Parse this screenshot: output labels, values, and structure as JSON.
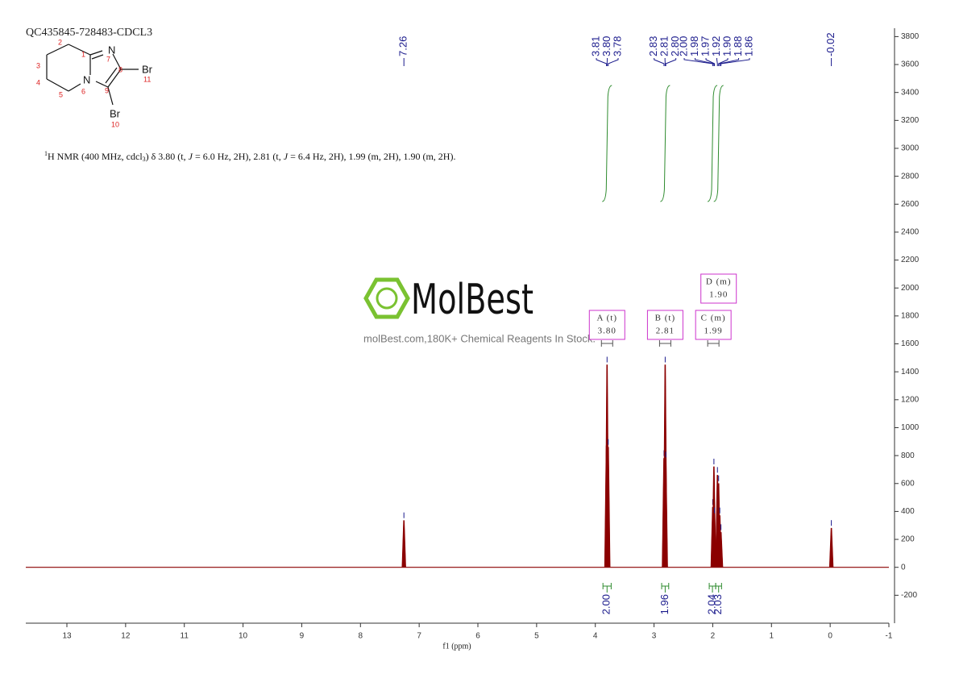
{
  "chart_data": {
    "type": "nmr",
    "title": "QC435845-728483-CDCL3",
    "description": [
      "1",
      "H NMR (400 MHz, cdcl",
      "3",
      ") δ 3.80 (t, ",
      "J",
      " = 6.0 Hz, 2H), 2.81 (t, ",
      "J",
      " = 6.4 Hz, 2H), 1.99 (m, 2H), 1.90 (m, 2H)."
    ],
    "structure": {
      "atoms": [
        "N",
        "N",
        "Br",
        "Br"
      ],
      "numbers": [
        "1",
        "2",
        "3",
        "4",
        "5",
        "6",
        "7",
        "8",
        "9",
        "10",
        "11"
      ]
    },
    "watermark": {
      "brand": "MolBest",
      "slogan": "molBest.com,180K+ Chemical Reagents In Stock."
    },
    "xlabel": "f1 (ppm)",
    "xlim": [
      13.7,
      -1
    ],
    "xticks": [
      13,
      12,
      11,
      10,
      9,
      8,
      7,
      6,
      5,
      4,
      3,
      2,
      1,
      0,
      -1
    ],
    "ylim": [
      -400,
      3860
    ],
    "yticks": [
      -200,
      0,
      200,
      400,
      600,
      800,
      1000,
      1200,
      1400,
      1600,
      1800,
      2000,
      2200,
      2400,
      2600,
      2800,
      3000,
      3200,
      3400,
      3600,
      3800
    ],
    "color": "#8b0000",
    "peak_color": "#1a1a8c",
    "x": [
      7.26,
      3.81,
      3.8,
      3.78,
      2.83,
      2.81,
      2.8,
      2.0,
      1.98,
      1.97,
      1.92,
      1.9,
      1.88,
      1.86,
      -0.02
    ],
    "x_labels": [
      "7.26",
      "3.81",
      "3.80",
      "3.78",
      "2.83",
      "2.81",
      "2.80",
      "2.00",
      "1.98",
      "1.97",
      "1.92",
      "1.90",
      "1.88",
      "1.86",
      "-0.02"
    ],
    "values": [
      335,
      870,
      1450,
      860,
      780,
      1450,
      770,
      430,
      720,
      370,
      660,
      600,
      370,
      250,
      280
    ],
    "integrals": {
      "color": "#2e8b2e",
      "ranges": [
        [
          3.87,
          3.73
        ],
        [
          2.87,
          2.75
        ],
        [
          2.06,
          1.95
        ],
        [
          1.95,
          1.85
        ]
      ],
      "values": [
        2.0,
        1.96,
        2.04,
        2.03
      ],
      "value_labels": [
        "2.00",
        "1.96",
        "2.04",
        "2.03"
      ]
    },
    "multiplets": {
      "color": "#cc33cc",
      "items": [
        {
          "label": "A (t)",
          "shift": 3.8,
          "shift_label": "3.80"
        },
        {
          "label": "B (t)",
          "shift": 2.81,
          "shift_label": "2.81"
        },
        {
          "label": "C (m)",
          "shift": 1.99,
          "shift_label": "1.99"
        },
        {
          "label": "D (m)",
          "shift": 1.9,
          "shift_label": "1.90"
        }
      ]
    }
  }
}
